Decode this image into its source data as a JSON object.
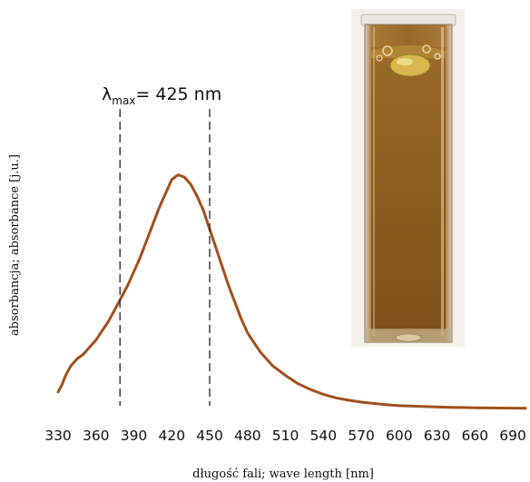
{
  "chart_data": {
    "type": "line",
    "xlabel": "długość fali; wave length [nm]",
    "ylabel": "absorbancja; absorbance [j.u.]",
    "xlim": [
      330,
      700
    ],
    "xticks": [
      330,
      360,
      390,
      420,
      450,
      480,
      510,
      540,
      570,
      600,
      630,
      660,
      690
    ],
    "grid": false,
    "annotation": {
      "symbol": "λ",
      "subscript": "max",
      "text": "= 425 nm"
    },
    "vlines": [
      379,
      450
    ],
    "series": [
      {
        "color": "#a0501e",
        "x": [
          330,
          333,
          336,
          340,
          345,
          350,
          355,
          360,
          365,
          370,
          375,
          380,
          385,
          390,
          395,
          400,
          405,
          410,
          415,
          420,
          425,
          430,
          435,
          440,
          445,
          450,
          455,
          460,
          465,
          470,
          475,
          480,
          490,
          500,
          510,
          520,
          530,
          540,
          550,
          560,
          570,
          580,
          590,
          600,
          620,
          640,
          660,
          680,
          700
        ],
        "y": [
          0.07,
          0.1,
          0.14,
          0.18,
          0.21,
          0.23,
          0.26,
          0.29,
          0.33,
          0.37,
          0.42,
          0.47,
          0.52,
          0.58,
          0.64,
          0.71,
          0.78,
          0.85,
          0.91,
          0.97,
          0.99,
          0.98,
          0.95,
          0.9,
          0.84,
          0.76,
          0.68,
          0.6,
          0.52,
          0.45,
          0.38,
          0.32,
          0.24,
          0.18,
          0.14,
          0.105,
          0.08,
          0.06,
          0.045,
          0.035,
          0.027,
          0.021,
          0.016,
          0.012,
          0.008,
          0.005,
          0.003,
          0.002,
          0.001
        ]
      }
    ]
  }
}
